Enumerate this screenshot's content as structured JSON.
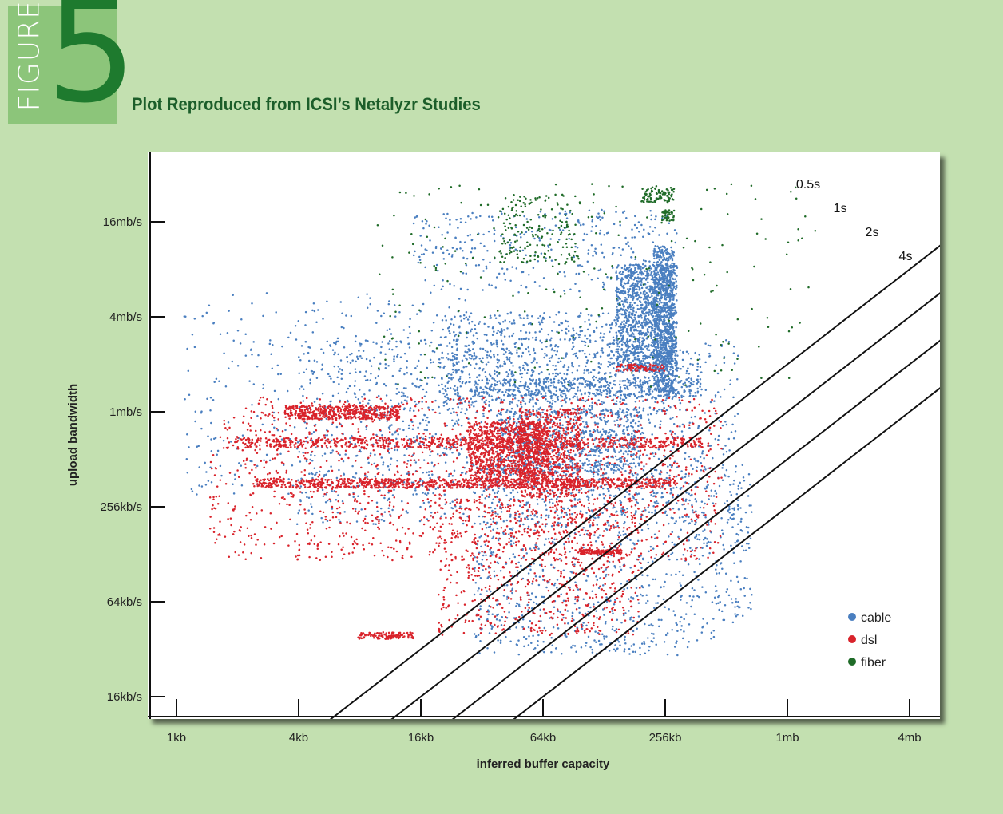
{
  "figure": {
    "label": "FIGURE",
    "number": "5",
    "title": "Plot Reproduced from ICSI’s Netalyzr Studies"
  },
  "colors": {
    "background": "#c3e0b0",
    "badge": "#8cc57a",
    "badge_number": "#1e7a2e",
    "title": "#1c5e2a",
    "cable": "#4a7fc0",
    "dsl": "#d9232b",
    "fiber": "#1f6b28"
  },
  "chart_data": {
    "type": "scatter",
    "title": "Plot Reproduced from ICSI’s Netalyzr Studies",
    "xlabel": "inferred buffer capacity",
    "ylabel": "upload bandwidth",
    "x_scale": "log2",
    "y_scale": "log2",
    "x_ticks": [
      {
        "label": "1kb",
        "value": 1024
      },
      {
        "label": "4kb",
        "value": 4096
      },
      {
        "label": "16kb",
        "value": 16384
      },
      {
        "label": "64kb",
        "value": 65536
      },
      {
        "label": "256kb",
        "value": 262144
      },
      {
        "label": "1mb",
        "value": 1048576
      },
      {
        "label": "4mb",
        "value": 4194304
      }
    ],
    "y_ticks": [
      {
        "label": "16kb/s",
        "value": 16384
      },
      {
        "label": "64kb/s",
        "value": 65536
      },
      {
        "label": "256kb/s",
        "value": 262144
      },
      {
        "label": "1mb/s",
        "value": 1048576
      },
      {
        "label": "4mb/s",
        "value": 4194304
      },
      {
        "label": "16mb/s",
        "value": 16777216
      }
    ],
    "xlim": [
      724,
      8388608
    ],
    "ylim": [
      12288,
      50000000
    ],
    "delay_lines": [
      {
        "label": "0.5s",
        "seconds": 0.5
      },
      {
        "label": "1s",
        "seconds": 1
      },
      {
        "label": "2s",
        "seconds": 2
      },
      {
        "label": "4s",
        "seconds": 4
      }
    ],
    "series": [
      {
        "name": "cable",
        "color": "#4a7fc0",
        "clusters": [
          {
            "x": [
              150000,
              300000
            ],
            "y": [
              1900000,
              9000000
            ],
            "weight": 1200
          },
          {
            "x": [
              230000,
              290000
            ],
            "y": [
              1400000,
              12000000
            ],
            "weight": 700
          },
          {
            "x": [
              20000,
              300000
            ],
            "y": [
              1000000,
              4500000
            ],
            "weight": 900
          },
          {
            "x": [
              30000,
              400000
            ],
            "y": [
              1300000,
              1700000
            ],
            "weight": 400
          },
          {
            "x": [
              40000,
              200000
            ],
            "y": [
              420000,
              1100000
            ],
            "weight": 700
          },
          {
            "x": [
              4000,
              600000
            ],
            "y": [
              200000,
              3000000
            ],
            "weight": 1300
          },
          {
            "x": [
              1100,
              30000
            ],
            "y": [
              300000,
              6000000
            ],
            "weight": 400
          },
          {
            "x": [
              30000,
              700000
            ],
            "y": [
              30000,
              500000
            ],
            "weight": 1100
          },
          {
            "x": [
              15000,
              300000
            ],
            "y": [
              6000000,
              20000000
            ],
            "weight": 350
          }
        ]
      },
      {
        "name": "dsl",
        "color": "#d9232b",
        "clusters": [
          {
            "x": [
              3500,
              13000
            ],
            "y": [
              940000,
              1150000
            ],
            "weight": 450
          },
          {
            "x": [
              2000,
              400000
            ],
            "y": [
              620000,
              720000
            ],
            "weight": 700
          },
          {
            "x": [
              2500,
              300000
            ],
            "y": [
              345000,
              395000
            ],
            "weight": 900
          },
          {
            "x": [
              28000,
              70000
            ],
            "y": [
              380000,
              900000
            ],
            "weight": 900
          },
          {
            "x": [
              50000,
              100000
            ],
            "y": [
              300000,
              1100000
            ],
            "weight": 700
          },
          {
            "x": [
              1500,
              500000
            ],
            "y": [
              120000,
              1300000
            ],
            "weight": 1400
          },
          {
            "x": [
              20000,
              200000
            ],
            "y": [
              40000,
              300000
            ],
            "weight": 700
          },
          {
            "x": [
              8000,
              15000
            ],
            "y": [
              38000,
              42000
            ],
            "weight": 120
          },
          {
            "x": [
              100000,
              160000
            ],
            "y": [
              132000,
              140000
            ],
            "weight": 120
          },
          {
            "x": [
              150000,
              260000
            ],
            "y": [
              1900000,
              2100000
            ],
            "weight": 80
          }
        ]
      },
      {
        "name": "fiber",
        "color": "#1f6b28",
        "clusters": [
          {
            "x": [
              40000,
              100000
            ],
            "y": [
              9000000,
              25000000
            ],
            "weight": 180
          },
          {
            "x": [
              200000,
              290000
            ],
            "y": [
              22000000,
              28000000
            ],
            "weight": 90
          },
          {
            "x": [
              250000,
              290000
            ],
            "y": [
              17000000,
              20000000
            ],
            "weight": 40
          },
          {
            "x": [
              10000,
              1500000
            ],
            "y": [
              1500000,
              30000000
            ],
            "weight": 220
          }
        ]
      }
    ],
    "legend": {
      "position": "bottom-right",
      "entries": [
        {
          "label": "cable",
          "color": "#4a7fc0"
        },
        {
          "label": "dsl",
          "color": "#d9232b"
        },
        {
          "label": "fiber",
          "color": "#1f6b28"
        }
      ]
    }
  }
}
